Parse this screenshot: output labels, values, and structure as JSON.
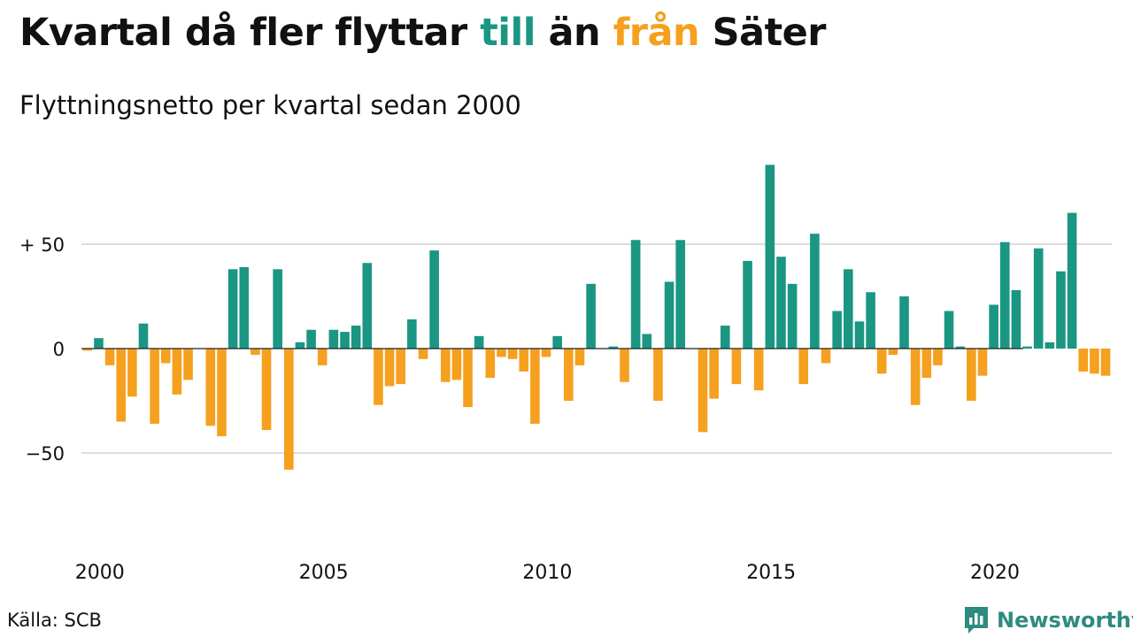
{
  "title": {
    "part1": "Kvartal då fler flyttar ",
    "till": "till",
    "part2": " än ",
    "fran": "från",
    "part3": " Säter"
  },
  "subtitle": "Flyttningsnetto per kvartal sedan 2000",
  "source": "Källa: SCB",
  "brand": {
    "name": "Newsworthy",
    "icon": "newsworthy-logo-icon"
  },
  "colors": {
    "positive": "#1a9683",
    "negative": "#f5a01e",
    "grid": "#dddddd",
    "baseline": "#222222"
  },
  "chart_data": {
    "type": "bar",
    "xlabel": "",
    "ylabel": "",
    "start_year": 2000,
    "ylim": [
      -65,
      90
    ],
    "yticks": [
      {
        "value": 50,
        "label": "+ 50"
      },
      {
        "value": 0,
        "label": "0"
      },
      {
        "value": -50,
        "label": "−50"
      }
    ],
    "xticks": [
      {
        "value": 2000,
        "label": "2000"
      },
      {
        "value": 2005,
        "label": "2005"
      },
      {
        "value": 2010,
        "label": "2010"
      },
      {
        "value": 2015,
        "label": "2015"
      },
      {
        "value": 2020,
        "label": "2020"
      }
    ],
    "grid": true,
    "values": [
      -1,
      5,
      -8,
      -35,
      -23,
      12,
      -36,
      -7,
      -22,
      -15,
      0,
      -37,
      -42,
      38,
      39,
      -3,
      -39,
      38,
      -58,
      3,
      9,
      -8,
      9,
      8,
      11,
      41,
      -27,
      -18,
      -17,
      14,
      -5,
      47,
      -16,
      -15,
      -28,
      6,
      -14,
      -4,
      -5,
      -11,
      -36,
      -4,
      6,
      -25,
      -8,
      31,
      0,
      1,
      -16,
      52,
      7,
      -25,
      32,
      52,
      0,
      -40,
      -24,
      11,
      -17,
      42,
      -20,
      88,
      44,
      31,
      -17,
      55,
      -7,
      18,
      38,
      13,
      27,
      -12,
      -3,
      25,
      -27,
      -14,
      -8,
      18,
      1,
      -25,
      -13,
      21,
      51,
      28,
      1,
      48,
      3,
      37,
      65,
      -11,
      -12,
      -13
    ]
  }
}
